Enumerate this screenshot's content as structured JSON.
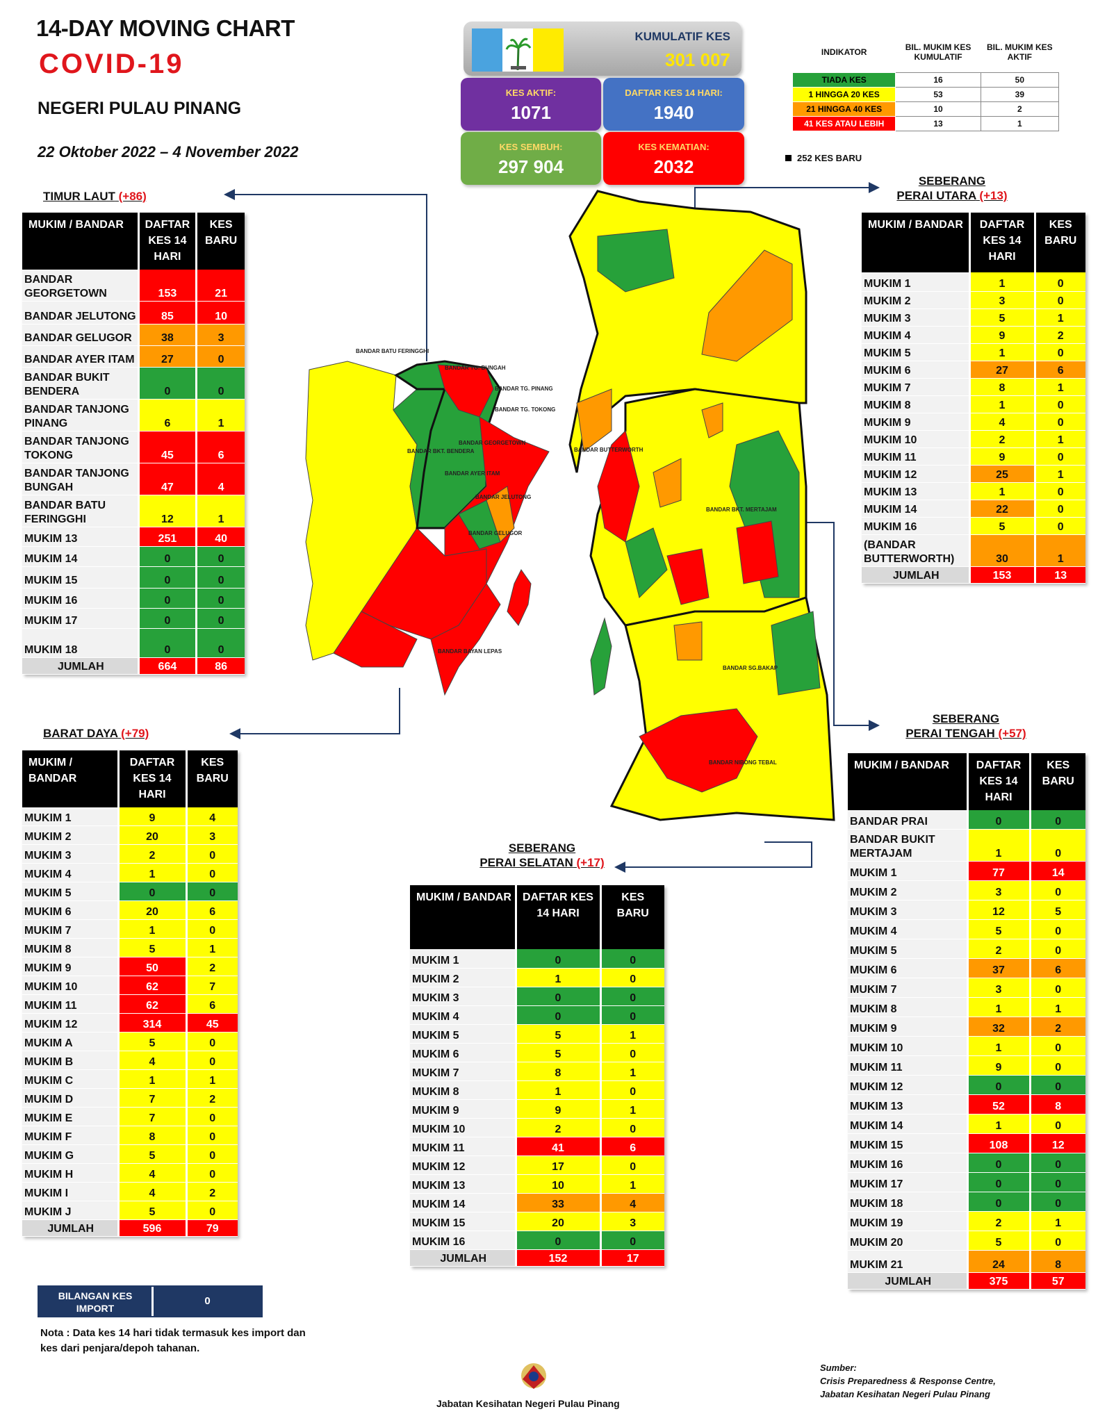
{
  "header": {
    "line1": "14-DAY MOVING CHART",
    "line2": "COVID-19",
    "line3": "NEGERI PULAU PINANG",
    "line4": "22 Oktober 2022 – 4 November 2022"
  },
  "summary": {
    "kumulatif_label": "KUMULATIF KES",
    "kumulatif_value": "301 007",
    "aktif_label": "KES AKTIF:",
    "aktif_value": "1071",
    "daftar_label": "DAFTAR KES 14 HARI:",
    "daftar_value": "1940",
    "sembuh_label": "KES SEMBUH:",
    "sembuh_value": "297 904",
    "kematian_label": "KES KEMATIAN:",
    "kematian_value": "2032"
  },
  "indicator": {
    "h0": "INDIKATOR",
    "h1": "BIL. MUKIM KES KUMULATIF",
    "h2": "BIL. MUKIM KES AKTIF",
    "rows": [
      [
        "TIADA KES",
        "16",
        "50"
      ],
      [
        "1 HINGGA 20 KES",
        "53",
        "39"
      ],
      [
        "21 HINGGA 40 KES",
        "10",
        "2"
      ],
      [
        "41 KES ATAU LEBIH",
        "13",
        "1"
      ]
    ],
    "colors": [
      "#27a13a",
      "#ffff00",
      "#ff9900",
      "#ff0000"
    ]
  },
  "new_cases_label": "252 KES BARU",
  "col_headers": {
    "a": "MUKIM / BANDAR",
    "b": "DAFTAR KES 14 HARI",
    "b2": "DAFTAR KES 14 HARI",
    "c": "KES BARU"
  },
  "timur_laut": {
    "title": "TIMUR LAUT",
    "delta": "(+86)",
    "rows": [
      [
        "BANDAR GEORGETOWN",
        "153",
        "21",
        "r",
        "r"
      ],
      [
        "BANDAR JELUTONG",
        "85",
        "10",
        "r",
        "r"
      ],
      [
        "BANDAR GELUGOR",
        "38",
        "3",
        "o",
        "o"
      ],
      [
        "BANDAR AYER ITAM",
        "27",
        "0",
        "o",
        "o"
      ],
      [
        "BANDAR BUKIT BENDERA",
        "0",
        "0",
        "g",
        "g"
      ],
      [
        "BANDAR TANJONG PINANG",
        "6",
        "1",
        "y",
        "y"
      ],
      [
        "BANDAR TANJONG TOKONG",
        "45",
        "6",
        "r",
        "r"
      ],
      [
        "BANDAR TANJONG BUNGAH",
        "47",
        "4",
        "r",
        "r"
      ],
      [
        "BANDAR BATU FERINGGHI",
        "12",
        "1",
        "y",
        "y"
      ],
      [
        "MUKIM 13",
        "251",
        "40",
        "r",
        "r"
      ],
      [
        "MUKIM 14",
        "0",
        "0",
        "g",
        "g"
      ],
      [
        "MUKIM 15",
        "0",
        "0",
        "g",
        "g"
      ],
      [
        "MUKIM 16",
        "0",
        "0",
        "g",
        "g"
      ],
      [
        "MUKIM 17",
        "0",
        "0",
        "g",
        "g"
      ],
      [
        "MUKIM 18",
        "0",
        "0",
        "g",
        "g"
      ]
    ],
    "total_label": "JUMLAH",
    "total": [
      "664",
      "86"
    ]
  },
  "barat_daya": {
    "title": "BARAT DAYA",
    "delta": "(+79)",
    "rows": [
      [
        "MUKIM 1",
        "9",
        "4",
        "y",
        "y"
      ],
      [
        "MUKIM 2",
        "20",
        "3",
        "y",
        "y"
      ],
      [
        "MUKIM 3",
        "2",
        "0",
        "y",
        "y"
      ],
      [
        "MUKIM 4",
        "1",
        "0",
        "y",
        "y"
      ],
      [
        "MUKIM 5",
        "0",
        "0",
        "g",
        "g"
      ],
      [
        "MUKIM 6",
        "20",
        "6",
        "y",
        "y"
      ],
      [
        "MUKIM 7",
        "1",
        "0",
        "y",
        "y"
      ],
      [
        "MUKIM 8",
        "5",
        "1",
        "y",
        "y"
      ],
      [
        "MUKIM 9",
        "50",
        "2",
        "r",
        "y"
      ],
      [
        "MUKIM 10",
        "62",
        "7",
        "r",
        "y"
      ],
      [
        "MUKIM 11",
        "62",
        "6",
        "r",
        "y"
      ],
      [
        "MUKIM 12",
        "314",
        "45",
        "r",
        "r"
      ],
      [
        "MUKIM A",
        "5",
        "0",
        "y",
        "y"
      ],
      [
        "MUKIM B",
        "4",
        "0",
        "y",
        "y"
      ],
      [
        "MUKIM C",
        "1",
        "1",
        "y",
        "y"
      ],
      [
        "MUKIM D",
        "7",
        "2",
        "y",
        "y"
      ],
      [
        "MUKIM E",
        "7",
        "0",
        "y",
        "y"
      ],
      [
        "MUKIM F",
        "8",
        "0",
        "y",
        "y"
      ],
      [
        "MUKIM G",
        "5",
        "0",
        "y",
        "y"
      ],
      [
        "MUKIM H",
        "4",
        "0",
        "y",
        "y"
      ],
      [
        "MUKIM I",
        "4",
        "2",
        "y",
        "y"
      ],
      [
        "MUKIM J",
        "5",
        "0",
        "y",
        "y"
      ]
    ],
    "total_label": "JUMLAH",
    "total": [
      "596",
      "79"
    ]
  },
  "spu": {
    "title1": "SEBERANG",
    "title2": "PERAI UTARA",
    "delta": "(+13)",
    "rows": [
      [
        "MUKIM 1",
        "1",
        "0",
        "y",
        "y"
      ],
      [
        "MUKIM 2",
        "3",
        "0",
        "y",
        "y"
      ],
      [
        "MUKIM 3",
        "5",
        "1",
        "y",
        "y"
      ],
      [
        "MUKIM 4",
        "9",
        "2",
        "y",
        "y"
      ],
      [
        "MUKIM 5",
        "1",
        "0",
        "y",
        "y"
      ],
      [
        "MUKIM 6",
        "27",
        "6",
        "o",
        "o"
      ],
      [
        "MUKIM 7",
        "8",
        "1",
        "y",
        "y"
      ],
      [
        "MUKIM 8",
        "1",
        "0",
        "y",
        "y"
      ],
      [
        "MUKIM 9",
        "4",
        "0",
        "y",
        "y"
      ],
      [
        "MUKIM 10",
        "2",
        "1",
        "y",
        "y"
      ],
      [
        "MUKIM 11",
        "9",
        "0",
        "y",
        "y"
      ],
      [
        "MUKIM 12",
        "25",
        "1",
        "o",
        "y"
      ],
      [
        "MUKIM 13",
        "1",
        "0",
        "y",
        "y"
      ],
      [
        "MUKIM 14",
        "22",
        "0",
        "o",
        "y"
      ],
      [
        "MUKIM 16",
        "5",
        "0",
        "y",
        "y"
      ],
      [
        "(BANDAR BUTTERWORTH)",
        "30",
        "1",
        "o",
        "o"
      ]
    ],
    "total_label": "JUMLAH",
    "total": [
      "153",
      "13"
    ]
  },
  "spt": {
    "title1": "SEBERANG",
    "title2": "PERAI TENGAH",
    "delta": "(+57)",
    "rows": [
      [
        "BANDAR PRAI",
        "0",
        "0",
        "g",
        "g"
      ],
      [
        "BANDAR BUKIT MERTAJAM",
        "1",
        "0",
        "y",
        "y"
      ],
      [
        "MUKIM 1",
        "77",
        "14",
        "r",
        "r"
      ],
      [
        "MUKIM 2",
        "3",
        "0",
        "y",
        "y"
      ],
      [
        "MUKIM 3",
        "12",
        "5",
        "y",
        "y"
      ],
      [
        "MUKIM 4",
        "5",
        "0",
        "y",
        "y"
      ],
      [
        "MUKIM 5",
        "2",
        "0",
        "y",
        "y"
      ],
      [
        "MUKIM 6",
        "37",
        "6",
        "o",
        "o"
      ],
      [
        "MUKIM 7",
        "3",
        "0",
        "y",
        "y"
      ],
      [
        "MUKIM 8",
        "1",
        "1",
        "y",
        "y"
      ],
      [
        "MUKIM 9",
        "32",
        "2",
        "o",
        "o"
      ],
      [
        "MUKIM 10",
        "1",
        "0",
        "y",
        "y"
      ],
      [
        "MUKIM 11",
        "9",
        "0",
        "y",
        "y"
      ],
      [
        "MUKIM 12",
        "0",
        "0",
        "g",
        "g"
      ],
      [
        "MUKIM 13",
        "52",
        "8",
        "r",
        "r"
      ],
      [
        "MUKIM 14",
        "1",
        "0",
        "y",
        "y"
      ],
      [
        "MUKIM 15",
        "108",
        "12",
        "r",
        "r"
      ],
      [
        "MUKIM 16",
        "0",
        "0",
        "g",
        "g"
      ],
      [
        "MUKIM 17",
        "0",
        "0",
        "g",
        "g"
      ],
      [
        "MUKIM 18",
        "0",
        "0",
        "g",
        "g"
      ],
      [
        "MUKIM 19",
        "2",
        "1",
        "y",
        "y"
      ],
      [
        "MUKIM 20",
        "5",
        "0",
        "y",
        "y"
      ],
      [
        "MUKIM 21",
        "24",
        "8",
        "o",
        "o"
      ]
    ],
    "total_label": "JUMLAH",
    "total": [
      "375",
      "57"
    ]
  },
  "sps": {
    "title1": "SEBERANG",
    "title2": "PERAI SELATAN",
    "delta": "(+17)",
    "rows": [
      [
        "MUKIM 1",
        "0",
        "0",
        "g",
        "g"
      ],
      [
        "MUKIM 2",
        "1",
        "0",
        "y",
        "y"
      ],
      [
        "MUKIM 3",
        "0",
        "0",
        "g",
        "g"
      ],
      [
        "MUKIM 4",
        "0",
        "0",
        "g",
        "g"
      ],
      [
        "MUKIM 5",
        "5",
        "1",
        "y",
        "y"
      ],
      [
        "MUKIM 6",
        "5",
        "0",
        "y",
        "y"
      ],
      [
        "MUKIM 7",
        "8",
        "1",
        "y",
        "y"
      ],
      [
        "MUKIM 8",
        "1",
        "0",
        "y",
        "y"
      ],
      [
        "MUKIM 9",
        "9",
        "1",
        "y",
        "y"
      ],
      [
        "MUKIM 10",
        "2",
        "0",
        "y",
        "y"
      ],
      [
        "MUKIM 11",
        "41",
        "6",
        "r",
        "r"
      ],
      [
        "MUKIM 12",
        "17",
        "0",
        "y",
        "y"
      ],
      [
        "MUKIM 13",
        "10",
        "1",
        "y",
        "y"
      ],
      [
        "MUKIM 14",
        "33",
        "4",
        "o",
        "o"
      ],
      [
        "MUKIM 15",
        "20",
        "3",
        "y",
        "y"
      ],
      [
        "MUKIM 16",
        "0",
        "0",
        "g",
        "g"
      ]
    ],
    "total_label": "JUMLAH",
    "total": [
      "152",
      "17"
    ]
  },
  "import": {
    "label": "BILANGAN KES IMPORT",
    "value": "0"
  },
  "note": "Nota : Data kes 14 hari tidak termasuk kes import dan kes dari penjara/depoh tahanan.",
  "footer": {
    "dept": "Jabatan Kesihatan Negeri Pulau Pinang",
    "source_label": "Sumber:",
    "source1": "Crisis Preparedness & Response Centre,",
    "source2": "Jabatan Kesihatan Negeri Pulau Pinang"
  },
  "map_labels": {
    "l1": "BANDAR BATU FERINGGHI",
    "l2": "BANDAR TG. BUNGAH",
    "l3": "BANDAR TG. PINANG",
    "l4": "BANDAR TG. TOKONG",
    "l5": "BANDAR GEORGETOWN",
    "l6": "BANDAR AYER ITAM",
    "l7": "BANDAR JELUTONG",
    "l8": "BANDAR GELUGOR",
    "l9": "BANDAR BKT. BENDERA",
    "l10": "BANDAR BAYAN LEPAS",
    "l11": "BANDAR BUTTERWORTH",
    "l12": "BANDAR BKT. MERTAJAM",
    "l13": "BANDAR SG.BAKAP",
    "l14": "BANDAR NIBONG TEBAL"
  }
}
